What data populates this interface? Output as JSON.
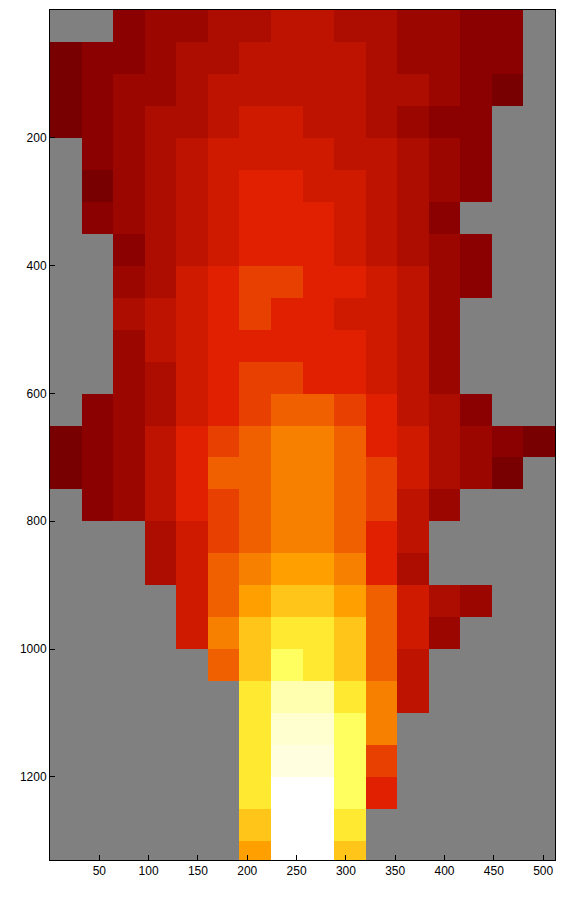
{
  "chart_data": {
    "type": "heatmap",
    "x": [
      16,
      48,
      80,
      112,
      144,
      176,
      208,
      240,
      272,
      304,
      336,
      368,
      400,
      432,
      464,
      496
    ],
    "y": [
      25,
      75,
      125,
      175,
      225,
      275,
      325,
      375,
      425,
      475,
      525,
      575,
      625,
      675,
      725,
      775,
      825,
      875,
      925,
      975,
      1025,
      1075,
      1125,
      1175,
      1225,
      1275,
      1325
    ],
    "z": [
      [
        null,
        null,
        0.3,
        0.35,
        0.35,
        0.4,
        0.4,
        0.45,
        0.45,
        0.4,
        0.4,
        0.35,
        0.35,
        0.3,
        0.3,
        null
      ],
      [
        0.25,
        0.3,
        0.3,
        0.35,
        0.4,
        0.4,
        0.45,
        0.45,
        0.45,
        0.45,
        0.4,
        0.35,
        0.35,
        0.3,
        0.3,
        null
      ],
      [
        0.25,
        0.3,
        0.35,
        0.35,
        0.4,
        0.45,
        0.45,
        0.45,
        0.45,
        0.45,
        0.4,
        0.4,
        0.35,
        0.3,
        0.25,
        null
      ],
      [
        0.25,
        0.3,
        0.35,
        0.4,
        0.4,
        0.45,
        0.5,
        0.5,
        0.45,
        0.45,
        0.4,
        0.35,
        0.3,
        0.3,
        null,
        null
      ],
      [
        null,
        0.3,
        0.35,
        0.4,
        0.45,
        0.5,
        0.5,
        0.5,
        0.5,
        0.45,
        0.45,
        0.4,
        0.35,
        0.3,
        null,
        null
      ],
      [
        null,
        0.25,
        0.35,
        0.4,
        0.45,
        0.5,
        0.55,
        0.55,
        0.5,
        0.5,
        0.45,
        0.4,
        0.35,
        0.3,
        null,
        null
      ],
      [
        null,
        0.3,
        0.35,
        0.4,
        0.45,
        0.5,
        0.55,
        0.55,
        0.55,
        0.5,
        0.45,
        0.4,
        0.3,
        null,
        null,
        null
      ],
      [
        null,
        null,
        0.3,
        0.4,
        0.45,
        0.5,
        0.55,
        0.55,
        0.55,
        0.5,
        0.45,
        0.4,
        0.35,
        0.3,
        null,
        null
      ],
      [
        null,
        null,
        0.35,
        0.4,
        0.5,
        0.55,
        0.6,
        0.6,
        0.55,
        0.55,
        0.5,
        0.45,
        0.35,
        0.3,
        null,
        null
      ],
      [
        null,
        null,
        0.4,
        0.45,
        0.5,
        0.55,
        0.6,
        0.55,
        0.55,
        0.5,
        0.5,
        0.45,
        0.35,
        null,
        null,
        null
      ],
      [
        null,
        null,
        0.35,
        0.45,
        0.5,
        0.55,
        0.55,
        0.55,
        0.55,
        0.55,
        0.5,
        0.45,
        0.35,
        null,
        null,
        null
      ],
      [
        null,
        null,
        0.35,
        0.4,
        0.5,
        0.55,
        0.6,
        0.6,
        0.55,
        0.55,
        0.5,
        0.45,
        0.35,
        null,
        null,
        null
      ],
      [
        null,
        0.3,
        0.35,
        0.4,
        0.5,
        0.55,
        0.6,
        0.65,
        0.65,
        0.6,
        0.55,
        0.45,
        0.4,
        0.3,
        null,
        null
      ],
      [
        0.25,
        0.3,
        0.35,
        0.45,
        0.55,
        0.6,
        0.65,
        0.7,
        0.7,
        0.65,
        0.55,
        0.5,
        0.4,
        0.35,
        0.3,
        0.25
      ],
      [
        0.25,
        0.3,
        0.35,
        0.45,
        0.55,
        0.65,
        0.65,
        0.7,
        0.7,
        0.65,
        0.6,
        0.5,
        0.4,
        0.35,
        0.25,
        null
      ],
      [
        null,
        0.3,
        0.35,
        0.45,
        0.55,
        0.6,
        0.65,
        0.7,
        0.7,
        0.65,
        0.6,
        0.45,
        0.35,
        null,
        null,
        null
      ],
      [
        null,
        null,
        null,
        0.4,
        0.5,
        0.6,
        0.65,
        0.7,
        0.7,
        0.65,
        0.55,
        0.45,
        null,
        null,
        null,
        null
      ],
      [
        null,
        null,
        null,
        0.4,
        0.5,
        0.65,
        0.7,
        0.75,
        0.75,
        0.7,
        0.55,
        0.4,
        null,
        null,
        null,
        null
      ],
      [
        null,
        null,
        null,
        null,
        0.5,
        0.65,
        0.75,
        0.8,
        0.8,
        0.75,
        0.65,
        0.5,
        0.4,
        0.35,
        null,
        null
      ],
      [
        null,
        null,
        null,
        null,
        0.5,
        0.7,
        0.8,
        0.85,
        0.85,
        0.8,
        0.65,
        0.5,
        0.35,
        null,
        null,
        null
      ],
      [
        null,
        null,
        null,
        null,
        null,
        0.65,
        0.8,
        0.9,
        0.85,
        0.8,
        0.65,
        0.45,
        null,
        null,
        null,
        null
      ],
      [
        null,
        null,
        null,
        null,
        null,
        null,
        0.85,
        0.95,
        0.95,
        0.85,
        0.7,
        0.45,
        null,
        null,
        null,
        null
      ],
      [
        null,
        null,
        null,
        null,
        null,
        null,
        0.85,
        0.97,
        0.97,
        0.9,
        0.7,
        null,
        null,
        null,
        null,
        null
      ],
      [
        null,
        null,
        null,
        null,
        null,
        null,
        0.85,
        0.98,
        0.98,
        0.9,
        0.6,
        null,
        null,
        null,
        null,
        null
      ],
      [
        null,
        null,
        null,
        null,
        null,
        null,
        0.85,
        1.0,
        1.0,
        0.9,
        0.55,
        null,
        null,
        null,
        null,
        null
      ],
      [
        null,
        null,
        null,
        null,
        null,
        null,
        0.8,
        1.0,
        1.0,
        0.85,
        null,
        null,
        null,
        null,
        null,
        null
      ],
      [
        null,
        null,
        null,
        null,
        null,
        null,
        0.75,
        1.0,
        1.0,
        0.8,
        null,
        null,
        null,
        null,
        null,
        null
      ]
    ],
    "zlim": [
      0,
      1
    ],
    "xlim": [
      0,
      512
    ],
    "ylim": [
      1330,
      0
    ],
    "xticks": [
      50,
      100,
      150,
      200,
      250,
      300,
      350,
      400,
      450,
      500
    ],
    "yticks": [
      200,
      400,
      600,
      800,
      1000,
      1200
    ],
    "grid": false
  }
}
